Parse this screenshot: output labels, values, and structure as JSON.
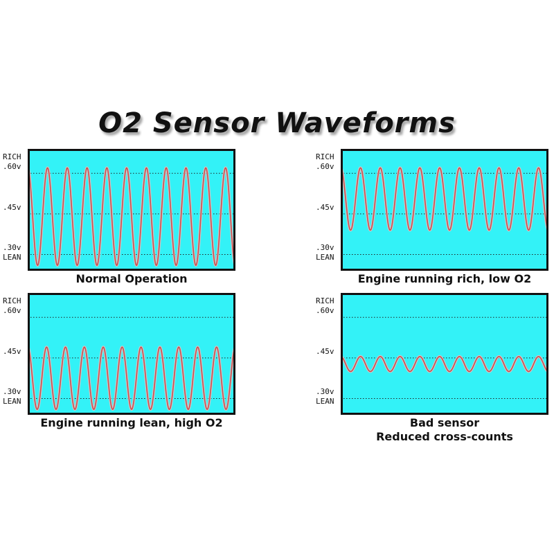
{
  "title": "O2 Sensor Waveforms",
  "colors": {
    "plot_background": "#33f2f7",
    "waveform": "#cc4e4e",
    "waveform_halo": "#c8c8c8",
    "frame": "#111111",
    "gridline": "#222222"
  },
  "y_labels": {
    "rich": "RICH",
    "v060": ".60v",
    "v045": ".45v",
    "v030": ".30v",
    "lean": "LEAN"
  },
  "panels": [
    {
      "caption_line1": "Normal Operation",
      "caption_line2": ""
    },
    {
      "caption_line1": "Engine running rich, low O2",
      "caption_line2": ""
    },
    {
      "caption_line1": "Engine running lean, high O2",
      "caption_line2": ""
    },
    {
      "caption_line1": "Bad sensor",
      "caption_line2": "Reduced cross-counts"
    }
  ],
  "chart_data": [
    {
      "type": "line",
      "title": "Normal Operation",
      "ylabel": "",
      "yticks": [
        0.3,
        0.45,
        0.6
      ],
      "ylim": [
        0.24,
        0.69
      ],
      "grid": "dotted lines at 0.30, 0.45, 0.60",
      "series": [
        {
          "cycles": 10.5,
          "max_v": 0.62,
          "min_v": 0.26,
          "phase": 0.25
        }
      ]
    },
    {
      "type": "line",
      "title": "Engine running rich, low O2",
      "ylabel": "",
      "yticks": [
        0.3,
        0.45,
        0.6
      ],
      "ylim": [
        0.24,
        0.69
      ],
      "grid": "dotted lines at 0.30, 0.45, 0.60",
      "series": [
        {
          "cycles": 10.5,
          "max_v": 0.62,
          "min_v": 0.39,
          "phase": 0.25
        }
      ]
    },
    {
      "type": "line",
      "title": "Engine running lean, high O2",
      "ylabel": "",
      "yticks": [
        0.3,
        0.45,
        0.6
      ],
      "ylim": [
        0.24,
        0.69
      ],
      "grid": "dotted lines at 0.30, 0.45, 0.60",
      "series": [
        {
          "cycles": 11,
          "max_v": 0.49,
          "min_v": 0.26,
          "phase": 0.25
        }
      ]
    },
    {
      "type": "line",
      "title": "Bad sensor\nReduced cross-counts",
      "ylabel": "",
      "yticks": [
        0.3,
        0.45,
        0.6
      ],
      "ylim": [
        0.24,
        0.69
      ],
      "grid": "dotted lines at 0.30, 0.45, 0.60",
      "series": [
        {
          "cycles": 10.5,
          "max_v": 0.455,
          "min_v": 0.4,
          "phase": 0.25
        }
      ]
    }
  ]
}
